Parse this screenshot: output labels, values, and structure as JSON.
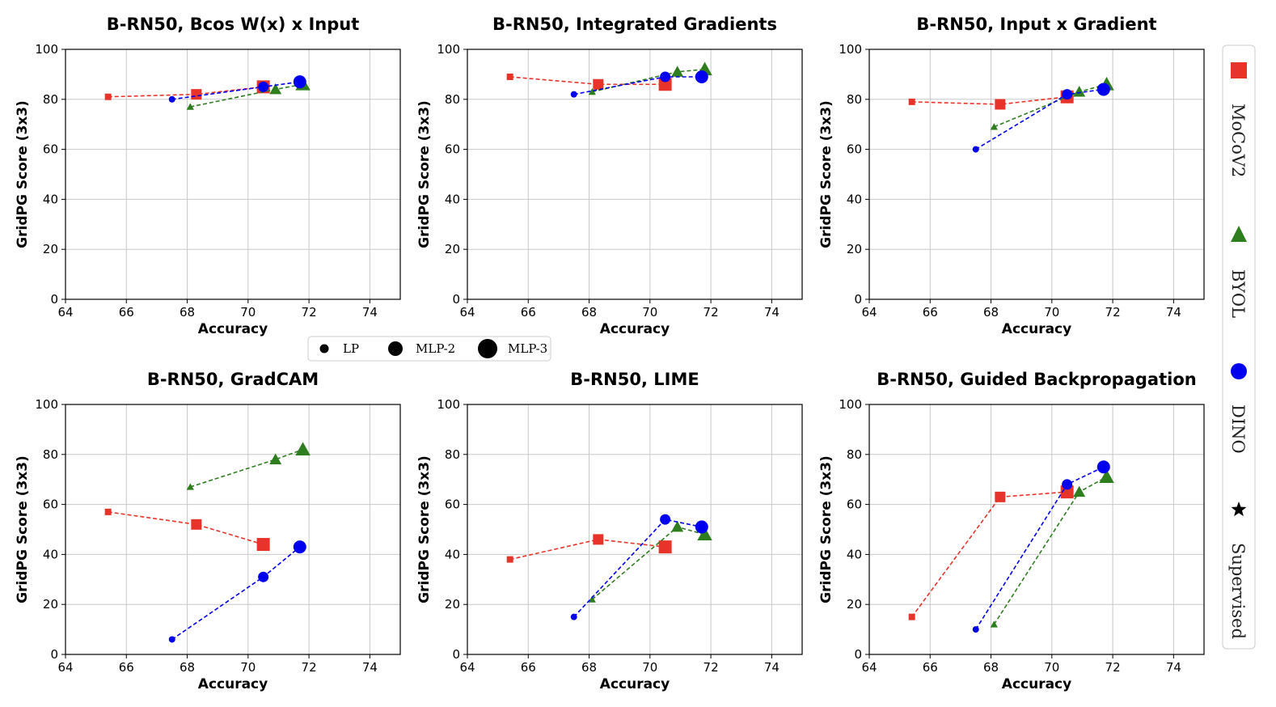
{
  "colors": {
    "MoCoV2": "#e8332a",
    "BYOL": "#2e7d1f",
    "DINO": "#0000ee",
    "Supervised": "#000000",
    "grid": "#c8c8c8"
  },
  "size_legend": {
    "items": [
      {
        "label": "LP"
      },
      {
        "label": "MLP-2"
      },
      {
        "label": "MLP-3"
      }
    ]
  },
  "method_legend": {
    "items": [
      {
        "label": "MoCoV2",
        "marker": "square",
        "color": "#e8332a"
      },
      {
        "label": "BYOL",
        "marker": "triangle",
        "color": "#2e7d1f"
      },
      {
        "label": "DINO",
        "marker": "circle",
        "color": "#0000ee"
      },
      {
        "label": "Supervised",
        "marker": "star",
        "color": "#000000"
      }
    ]
  },
  "chart_data": [
    {
      "type": "line",
      "title": "B-RN50, Bcos W(x) x Input",
      "xlabel": "Accuracy",
      "ylabel": "GridPG Score (3x3)",
      "xlim": [
        64,
        75
      ],
      "ylim": [
        0,
        100
      ],
      "xticks": [
        64,
        66,
        68,
        70,
        72,
        74
      ],
      "yticks": [
        0,
        20,
        40,
        60,
        80,
        100
      ],
      "grid": true,
      "series": [
        {
          "name": "MoCoV2",
          "x": [
            65.4,
            68.3,
            70.5
          ],
          "y": [
            81,
            82,
            85
          ]
        },
        {
          "name": "BYOL",
          "x": [
            68.1,
            70.9,
            71.8
          ],
          "y": [
            77,
            84,
            86
          ]
        },
        {
          "name": "DINO",
          "x": [
            67.5,
            70.5,
            71.7
          ],
          "y": [
            80,
            85,
            87
          ]
        }
      ]
    },
    {
      "type": "line",
      "title": "B-RN50, Integrated Gradients",
      "xlabel": "Accuracy",
      "ylabel": "GridPG Score (3x3)",
      "xlim": [
        64,
        75
      ],
      "ylim": [
        0,
        100
      ],
      "xticks": [
        64,
        66,
        68,
        70,
        72,
        74
      ],
      "yticks": [
        0,
        20,
        40,
        60,
        80,
        100
      ],
      "grid": true,
      "series": [
        {
          "name": "MoCoV2",
          "x": [
            65.4,
            68.3,
            70.5
          ],
          "y": [
            89,
            86,
            86
          ]
        },
        {
          "name": "BYOL",
          "x": [
            68.1,
            70.9,
            71.8
          ],
          "y": [
            83,
            91,
            92
          ]
        },
        {
          "name": "DINO",
          "x": [
            67.5,
            70.5,
            71.7
          ],
          "y": [
            82,
            89,
            89
          ]
        }
      ]
    },
    {
      "type": "line",
      "title": "B-RN50, Input x Gradient",
      "xlabel": "Accuracy",
      "ylabel": "GridPG Score (3x3)",
      "xlim": [
        64,
        75
      ],
      "ylim": [
        0,
        100
      ],
      "xticks": [
        64,
        66,
        68,
        70,
        72,
        74
      ],
      "yticks": [
        0,
        20,
        40,
        60,
        80,
        100
      ],
      "grid": true,
      "series": [
        {
          "name": "MoCoV2",
          "x": [
            65.4,
            68.3,
            70.5
          ],
          "y": [
            79,
            78,
            81
          ]
        },
        {
          "name": "BYOL",
          "x": [
            68.1,
            70.9,
            71.8
          ],
          "y": [
            69,
            83,
            86
          ]
        },
        {
          "name": "DINO",
          "x": [
            67.5,
            70.5,
            71.7
          ],
          "y": [
            60,
            82,
            84
          ]
        }
      ]
    },
    {
      "type": "line",
      "title": "B-RN50, GradCAM",
      "xlabel": "Accuracy",
      "ylabel": "GridPG Score (3x3)",
      "xlim": [
        64,
        75
      ],
      "ylim": [
        0,
        100
      ],
      "xticks": [
        64,
        66,
        68,
        70,
        72,
        74
      ],
      "yticks": [
        0,
        20,
        40,
        60,
        80,
        100
      ],
      "grid": true,
      "series": [
        {
          "name": "MoCoV2",
          "x": [
            65.4,
            68.3,
            70.5
          ],
          "y": [
            57,
            52,
            44
          ]
        },
        {
          "name": "BYOL",
          "x": [
            68.1,
            70.9,
            71.8
          ],
          "y": [
            67,
            78,
            82
          ]
        },
        {
          "name": "DINO",
          "x": [
            67.5,
            70.5,
            71.7
          ],
          "y": [
            6,
            31,
            43
          ]
        }
      ]
    },
    {
      "type": "line",
      "title": "B-RN50, LIME",
      "xlabel": "Accuracy",
      "ylabel": "GridPG Score (3x3)",
      "xlim": [
        64,
        75
      ],
      "ylim": [
        0,
        100
      ],
      "xticks": [
        64,
        66,
        68,
        70,
        72,
        74
      ],
      "yticks": [
        0,
        20,
        40,
        60,
        80,
        100
      ],
      "grid": true,
      "series": [
        {
          "name": "MoCoV2",
          "x": [
            65.4,
            68.3,
            70.5
          ],
          "y": [
            38,
            46,
            43
          ]
        },
        {
          "name": "BYOL",
          "x": [
            68.1,
            70.9,
            71.8
          ],
          "y": [
            22,
            51,
            48
          ]
        },
        {
          "name": "DINO",
          "x": [
            67.5,
            70.5,
            71.7
          ],
          "y": [
            15,
            54,
            51
          ]
        }
      ]
    },
    {
      "type": "line",
      "title": "B-RN50, Guided Backpropagation",
      "xlabel": "Accuracy",
      "ylabel": "GridPG Score (3x3)",
      "xlim": [
        64,
        75
      ],
      "ylim": [
        0,
        100
      ],
      "xticks": [
        64,
        66,
        68,
        70,
        72,
        74
      ],
      "yticks": [
        0,
        20,
        40,
        60,
        80,
        100
      ],
      "grid": true,
      "series": [
        {
          "name": "MoCoV2",
          "x": [
            65.4,
            68.3,
            70.5
          ],
          "y": [
            15,
            63,
            65
          ]
        },
        {
          "name": "BYOL",
          "x": [
            68.1,
            70.9,
            71.8
          ],
          "y": [
            12,
            65,
            71
          ]
        },
        {
          "name": "DINO",
          "x": [
            67.5,
            70.5,
            71.7
          ],
          "y": [
            10,
            68,
            75
          ]
        }
      ]
    }
  ]
}
